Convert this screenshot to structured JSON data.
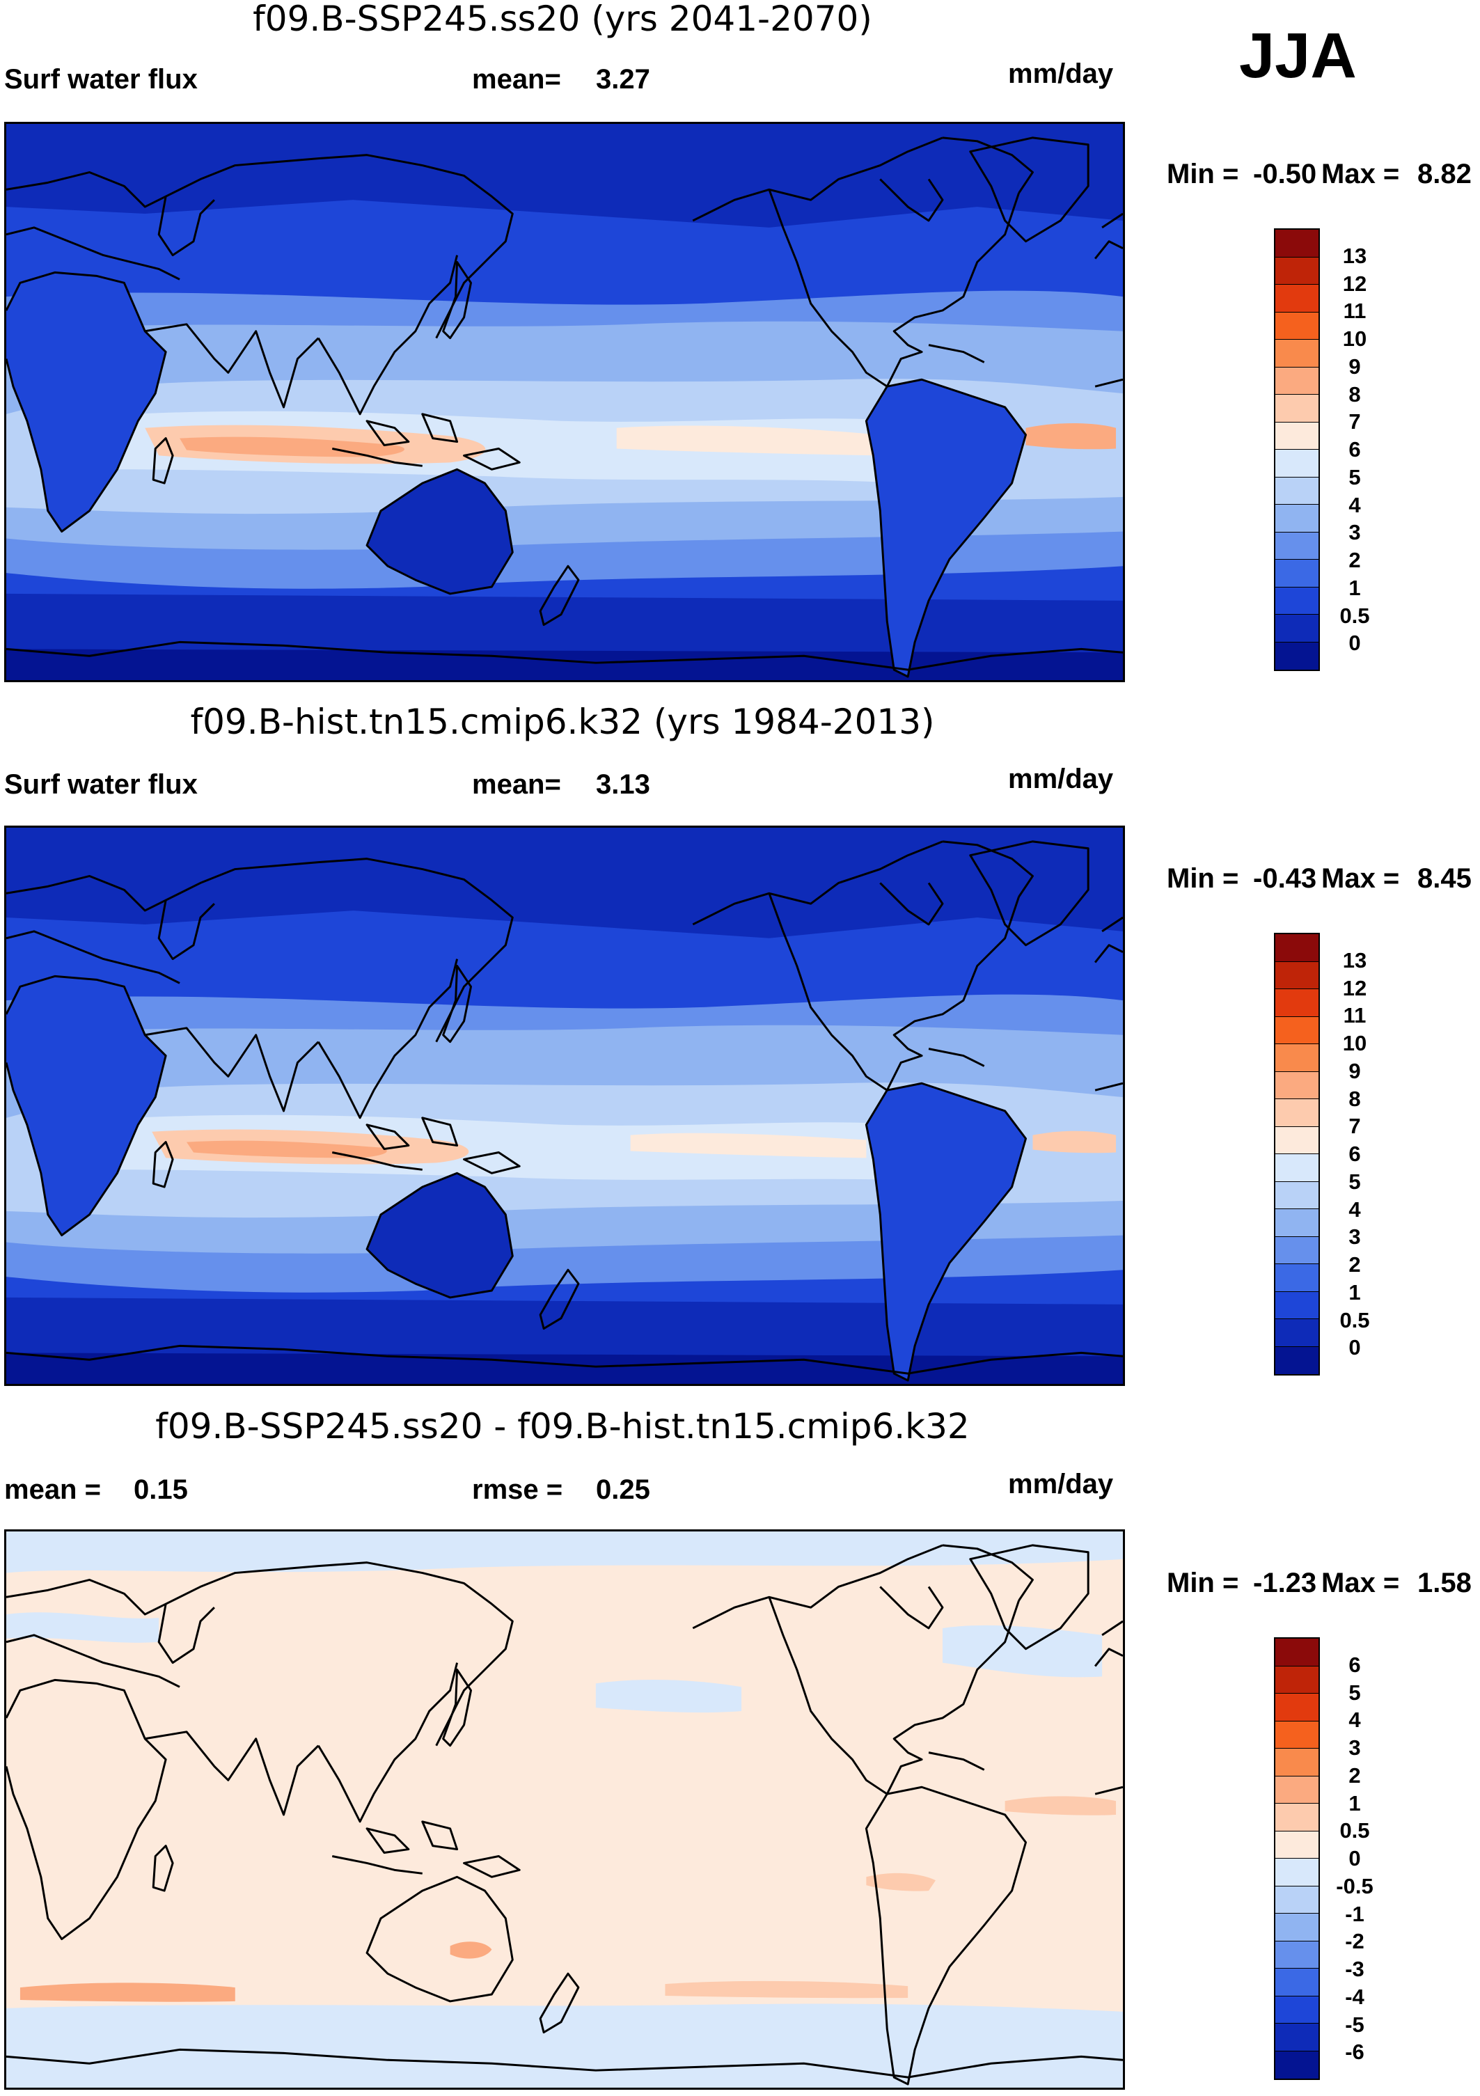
{
  "season": "JJA",
  "panels": [
    {
      "title": "f09.B-SSP245.ss20 (yrs 2041-2070)",
      "left_label": "Surf water flux",
      "stat_label": "mean=",
      "stat_value": "3.27",
      "stat2_label": "",
      "stat2_value": "",
      "units": "mm/day",
      "minmax_label": "Min =",
      "min": "-0.50",
      "max_label": "Max =",
      "max": "8.82",
      "colorbar": {
        "labels": [
          "13",
          "12",
          "11",
          "10",
          "9",
          "8",
          "7",
          "6",
          "5",
          "4",
          "3",
          "2",
          "1",
          "0.5",
          "0"
        ],
        "colors": [
          "#8b0a0a",
          "#bf2408",
          "#e23a0e",
          "#f5611e",
          "#f98a4c",
          "#fbaa80",
          "#fdcbae",
          "#fdeadc",
          "#d8e8fb",
          "#b9d2f7",
          "#90b4f1",
          "#6690ec",
          "#3b69e5",
          "#1e46d8",
          "#0e2bb8",
          "#041492"
        ]
      }
    },
    {
      "title": "f09.B-hist.tn15.cmip6.k32 (yrs 1984-2013)",
      "left_label": "Surf water flux",
      "stat_label": "mean=",
      "stat_value": "3.13",
      "stat2_label": "",
      "stat2_value": "",
      "units": "mm/day",
      "minmax_label": "Min =",
      "min": "-0.43",
      "max_label": "Max =",
      "max": "8.45",
      "colorbar": {
        "labels": [
          "13",
          "12",
          "11",
          "10",
          "9",
          "8",
          "7",
          "6",
          "5",
          "4",
          "3",
          "2",
          "1",
          "0.5",
          "0"
        ],
        "colors": [
          "#8b0a0a",
          "#bf2408",
          "#e23a0e",
          "#f5611e",
          "#f98a4c",
          "#fbaa80",
          "#fdcbae",
          "#fdeadc",
          "#d8e8fb",
          "#b9d2f7",
          "#90b4f1",
          "#6690ec",
          "#3b69e5",
          "#1e46d8",
          "#0e2bb8",
          "#041492"
        ]
      }
    },
    {
      "title": "f09.B-SSP245.ss20 - f09.B-hist.tn15.cmip6.k32",
      "left_label": "mean =",
      "stat_label": "",
      "stat_value": "0.15",
      "stat2_label": "rmse =",
      "stat2_value": "0.25",
      "units": "mm/day",
      "minmax_label": "Min =",
      "min": "-1.23",
      "max_label": "Max =",
      "max": "1.58",
      "colorbar": {
        "labels": [
          "6",
          "5",
          "4",
          "3",
          "2",
          "1",
          "0.5",
          "0",
          "-0.5",
          "-1",
          "-2",
          "-3",
          "-4",
          "-5",
          "-6"
        ],
        "colors": [
          "#8b0a0a",
          "#bf2408",
          "#e23a0e",
          "#f5611e",
          "#f98a4c",
          "#fbaa80",
          "#fdcbae",
          "#fdeadc",
          "#d8e8fb",
          "#b9d2f7",
          "#90b4f1",
          "#6690ec",
          "#3b69e5",
          "#1e46d8",
          "#0e2bb8",
          "#041492"
        ]
      }
    }
  ]
}
